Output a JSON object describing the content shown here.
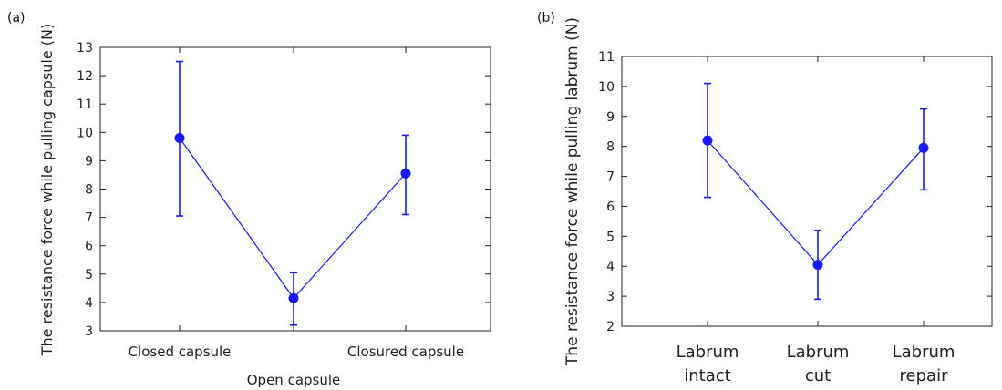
{
  "chart_data": [
    {
      "type": "line",
      "panel_label": "(a)",
      "ylabel": "The resistance force while pulling capsule (N)",
      "xlabel": "",
      "categories": [
        "Closed capsule",
        "Open capsule",
        "Closured capsule"
      ],
      "ylim": [
        3,
        13
      ],
      "yticks": [
        3,
        4,
        5,
        6,
        7,
        8,
        9,
        10,
        11,
        12,
        13
      ],
      "series": [
        {
          "values": [
            9.8,
            4.15,
            8.55
          ],
          "err_low": [
            7.05,
            3.2,
            7.1
          ],
          "err_high": [
            12.5,
            5.05,
            9.9
          ],
          "color": "#1a1aff"
        }
      ],
      "grid": false
    },
    {
      "type": "line",
      "panel_label": "(b)",
      "ylabel": "The resistance force while pulling labrum (N)",
      "xlabel": "",
      "categories": [
        {
          "lines": [
            "Labrum",
            "intact"
          ]
        },
        {
          "lines": [
            "Labrum",
            "cut"
          ]
        },
        {
          "lines": [
            "Labrum",
            "repair"
          ]
        }
      ],
      "ylim": [
        2,
        11
      ],
      "yticks": [
        2,
        3,
        4,
        5,
        6,
        7,
        8,
        9,
        10,
        11
      ],
      "series": [
        {
          "values": [
            8.2,
            4.05,
            7.95
          ],
          "err_low": [
            6.3,
            2.9,
            6.55
          ],
          "err_high": [
            10.1,
            5.2,
            9.25
          ],
          "color": "#1a1aff"
        }
      ],
      "grid": false
    }
  ]
}
